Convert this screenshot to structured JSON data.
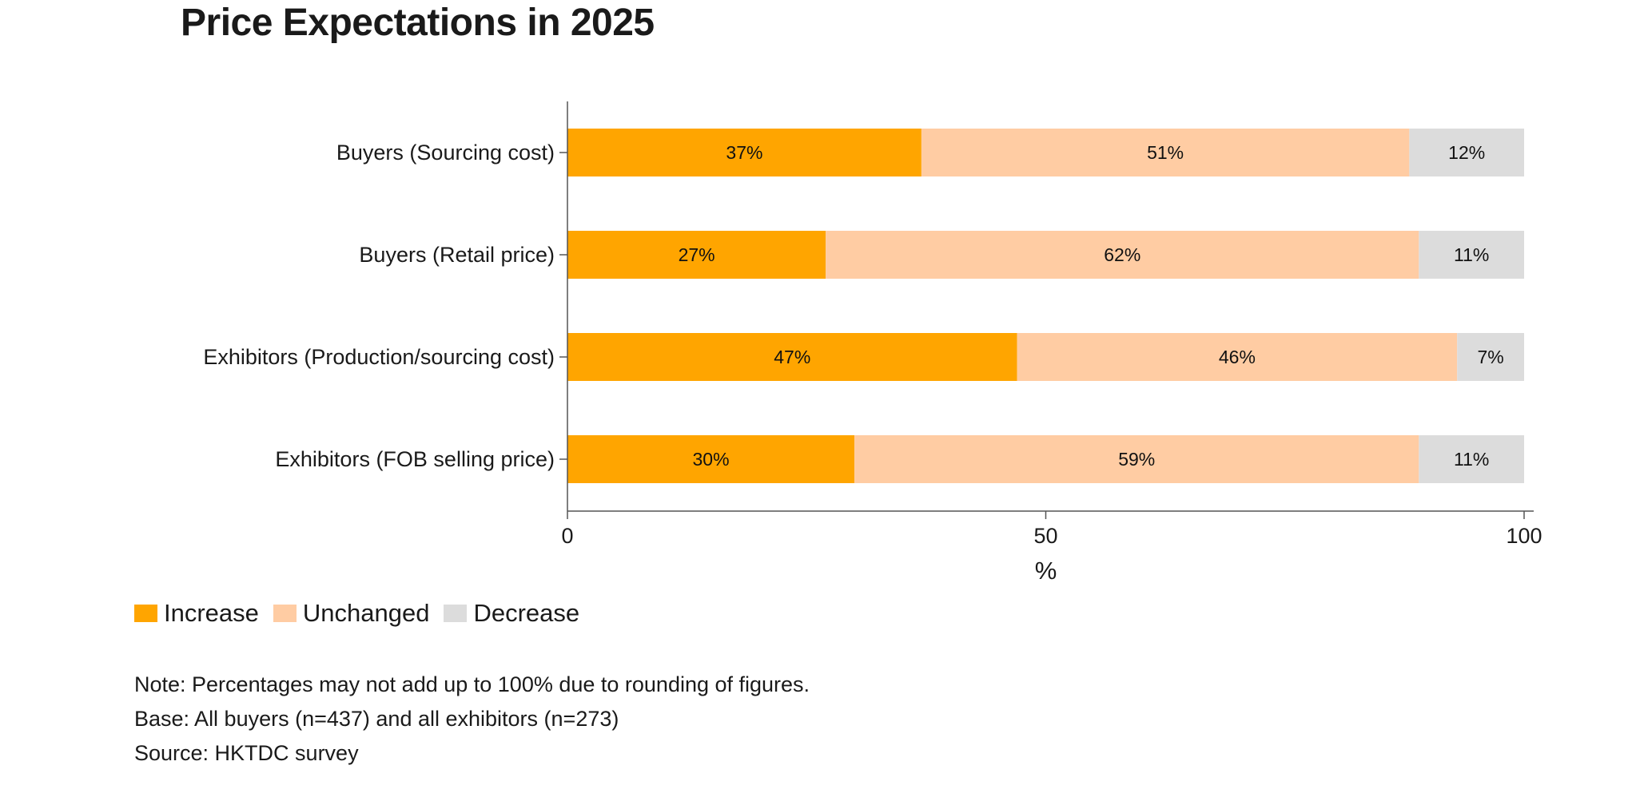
{
  "chart_data": {
    "type": "bar",
    "orientation": "horizontal",
    "stacked": true,
    "title": "Price Expectations in 2025",
    "xlabel": "%",
    "ylabel": "",
    "xlim": [
      0,
      100
    ],
    "xticks": [
      "0",
      "50",
      "100"
    ],
    "categories": [
      "Buyers (Sourcing cost)",
      "Buyers (Retail price)",
      "Exhibitors (Production/sourcing cost)",
      "Exhibitors (FOB selling price)"
    ],
    "series": [
      {
        "name": "Increase",
        "color": "#FFA500",
        "values": [
          37,
          27,
          47,
          30
        ],
        "labels": [
          "37%",
          "27%",
          "47%",
          "30%"
        ]
      },
      {
        "name": "Unchanged",
        "color": "#FFCCA3",
        "values": [
          51,
          62,
          46,
          59
        ],
        "labels": [
          "51%",
          "62%",
          "46%",
          "59%"
        ]
      },
      {
        "name": "Decrease",
        "color": "#DCDCDC",
        "values": [
          12,
          11,
          7,
          11
        ],
        "labels": [
          "12%",
          "11%",
          "7%",
          "11%"
        ]
      }
    ],
    "grid": false,
    "legend_position": "bottom-left"
  },
  "notes": {
    "note": "Note: Percentages may not add up to 100% due to rounding of figures.",
    "base": "Base: All buyers (n=437) and all exhibitors (n=273)",
    "source": "Source: HKTDC survey"
  }
}
